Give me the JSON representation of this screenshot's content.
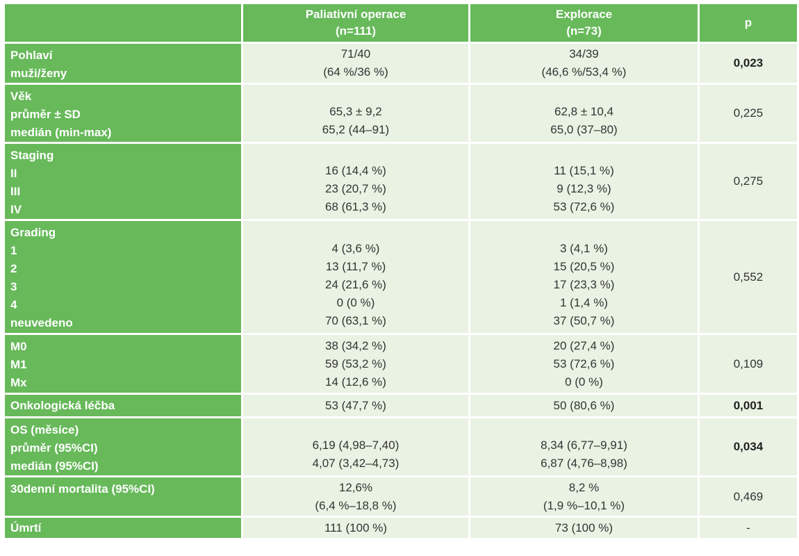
{
  "header": {
    "col1": [
      "Paliativní operace",
      "(n=111)"
    ],
    "col2": [
      "Explorace",
      "(n=73)"
    ],
    "col3": "p"
  },
  "rows": {
    "pohlavi": {
      "label": [
        "Pohlaví",
        "muži/ženy"
      ],
      "col1": [
        "71/40",
        "(64 %/36 %)"
      ],
      "col2": [
        "34/39",
        "(46,6 %/53,4 %)"
      ],
      "p": "0,023"
    },
    "vek": {
      "label": [
        "Věk",
        "průměr ± SD",
        "medián (min-max)"
      ],
      "col1": [
        "65,3 ± 9,2",
        "65,2 (44–91)"
      ],
      "col2": [
        "62,8 ± 10,4",
        "65,0 (37–80)"
      ],
      "p": "0,225"
    },
    "staging": {
      "label": [
        "Staging",
        "II",
        "III",
        "IV"
      ],
      "col1": [
        "16 (14,4 %)",
        "23 (20,7 %)",
        "68 (61,3 %)"
      ],
      "col2": [
        "11 (15,1 %)",
        "9 (12,3 %)",
        "53 (72,6 %)"
      ],
      "p": "0,275"
    },
    "grading": {
      "label": [
        "Grading",
        "1",
        "2",
        "3",
        "4",
        "neuvedeno"
      ],
      "col1": [
        "4 (3,6 %)",
        "13 (11,7 %)",
        "24 (21,6 %)",
        "0 (0 %)",
        "70 (63,1 %)"
      ],
      "col2": [
        "3 (4,1 %)",
        "15 (20,5 %)",
        "17 (23,3 %)",
        "1 (1,4 %)",
        "37 (50,7 %)"
      ],
      "p": "0,552"
    },
    "metastazy": {
      "label": [
        "M0",
        "M1",
        "Mx"
      ],
      "col1": [
        "38 (34,2 %)",
        "59 (53,2 %)",
        "14 (12,6 %)"
      ],
      "col2": [
        "20 (27,4 %)",
        "53 (72,6 %)",
        "0 (0 %)"
      ],
      "p": "0,109"
    },
    "onkologicka": {
      "label": [
        "Onkologická léčba"
      ],
      "col1": [
        "53 (47,7 %)"
      ],
      "col2": [
        "50 (80,6 %)"
      ],
      "p": "0,001"
    },
    "os": {
      "label": [
        "OS (měsíce)",
        "průměr (95%CI)",
        "medián (95%CI)"
      ],
      "col1": [
        "6,19 (4,98–7,40)",
        "4,07 (3,42–4,73)"
      ],
      "col2": [
        "8,34 (6,77–9,91)",
        "6,87 (4,76–8,98)"
      ],
      "p": "0,034"
    },
    "mortalita": {
      "label": [
        "30denní mortalita (95%CI)"
      ],
      "col1": [
        "12,6%",
        "(6,4 %–18,8 %)"
      ],
      "col2": [
        "8,2 %",
        "(1,9 %–10,1 %)"
      ],
      "p": "0,469"
    },
    "umrti": {
      "label": [
        "Úmrtí"
      ],
      "col1": [
        "111 (100 %)"
      ],
      "col2": [
        "73 (100 %)"
      ],
      "p": "-"
    }
  },
  "colors": {
    "header_green": "#67b95a",
    "cell_light_green": "#e9f2e3"
  }
}
